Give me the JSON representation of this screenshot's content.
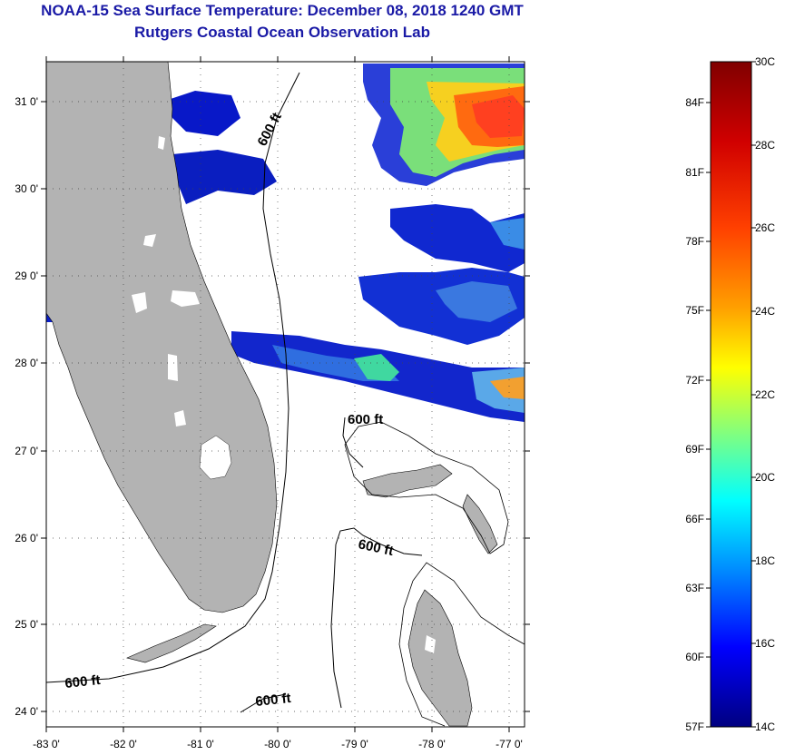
{
  "title": {
    "line1": "NOAA-15 Sea Surface Temperature:  December 08, 2018 1240 GMT",
    "line2": "Rutgers Coastal Ocean Observation Lab"
  },
  "map": {
    "region": "Florida and Bahamas",
    "latitude_ticks": [
      "31 0'",
      "30 0'",
      "29 0'",
      "28 0'",
      "27 0'",
      "26 0'",
      "25 0'",
      "24 0'"
    ],
    "longitude_ticks": [
      "-83 0'",
      "-82 0'",
      "-81 0'",
      "-80 0'",
      "-79 0'",
      "-78 0'",
      "-77 0'"
    ],
    "contour_labels": [
      "600 ft",
      "600 ft",
      "600 ft",
      "600 ft",
      "600 ft"
    ],
    "colors": {
      "land": "#b3b3b3",
      "no_data": "#ffffff",
      "frame": "#000000"
    }
  },
  "colorbar": {
    "min_c": 14,
    "max_c": 30,
    "celsius_labels": [
      "30C",
      "28C",
      "26C",
      "24C",
      "22C",
      "20C",
      "18C",
      "16C",
      "14C"
    ],
    "fahrenheit_labels": [
      "84F",
      "81F",
      "78F",
      "75F",
      "72F",
      "69F",
      "66F",
      "63F",
      "60F",
      "57F"
    ],
    "gradient_colors": [
      "#800000",
      "#ff0000",
      "#ff8000",
      "#ffff00",
      "#80ff80",
      "#00ffff",
      "#0080ff",
      "#0000ff",
      "#000080"
    ]
  }
}
